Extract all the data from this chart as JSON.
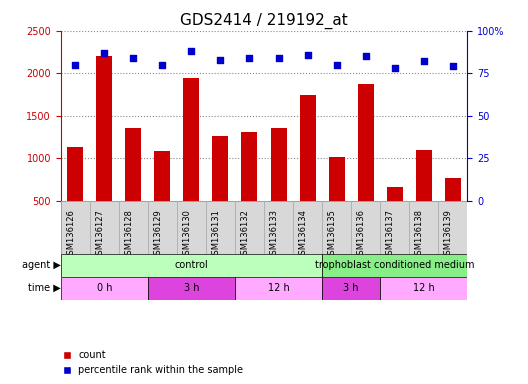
{
  "title": "GDS2414 / 219192_at",
  "samples": [
    "GSM136126",
    "GSM136127",
    "GSM136128",
    "GSM136129",
    "GSM136130",
    "GSM136131",
    "GSM136132",
    "GSM136133",
    "GSM136134",
    "GSM136135",
    "GSM136136",
    "GSM136137",
    "GSM136138",
    "GSM136139"
  ],
  "counts": [
    1140,
    2200,
    1360,
    1090,
    1940,
    1260,
    1310,
    1360,
    1740,
    1020,
    1880,
    670,
    1095,
    775
  ],
  "percentile_ranks": [
    80,
    87,
    84,
    80,
    88,
    83,
    84,
    84,
    86,
    80,
    85,
    78,
    82,
    79
  ],
  "bar_color": "#cc0000",
  "dot_color": "#0000cc",
  "ylim_left": [
    500,
    2500
  ],
  "ylim_right": [
    0,
    100
  ],
  "yticks_left": [
    500,
    1000,
    1500,
    2000,
    2500
  ],
  "yticks_right": [
    0,
    25,
    50,
    75,
    100
  ],
  "agent_groups": [
    {
      "label": "control",
      "start": 0,
      "end": 9
    },
    {
      "label": "trophoblast conditioned medium",
      "start": 9,
      "end": 14
    }
  ],
  "agent_colors": [
    "#bbffbb",
    "#88ee88"
  ],
  "time_groups": [
    {
      "label": "0 h",
      "start": 0,
      "end": 3
    },
    {
      "label": "3 h",
      "start": 3,
      "end": 6
    },
    {
      "label": "12 h",
      "start": 6,
      "end": 9
    },
    {
      "label": "3 h",
      "start": 9,
      "end": 11
    },
    {
      "label": "12 h",
      "start": 11,
      "end": 14
    }
  ],
  "time_colors": [
    "#ffaaff",
    "#dd44dd",
    "#ffaaff",
    "#dd44dd",
    "#ffaaff"
  ],
  "bar_bottom": 500,
  "title_fontsize": 11,
  "tick_fontsize": 7,
  "background_color": "#ffffff",
  "grid_color": "#888888",
  "left_tick_color": "#cc0000",
  "right_tick_color": "#0000cc",
  "xlabel_area_color": "#d8d8d8",
  "xlabel_border_color": "#aaaaaa"
}
